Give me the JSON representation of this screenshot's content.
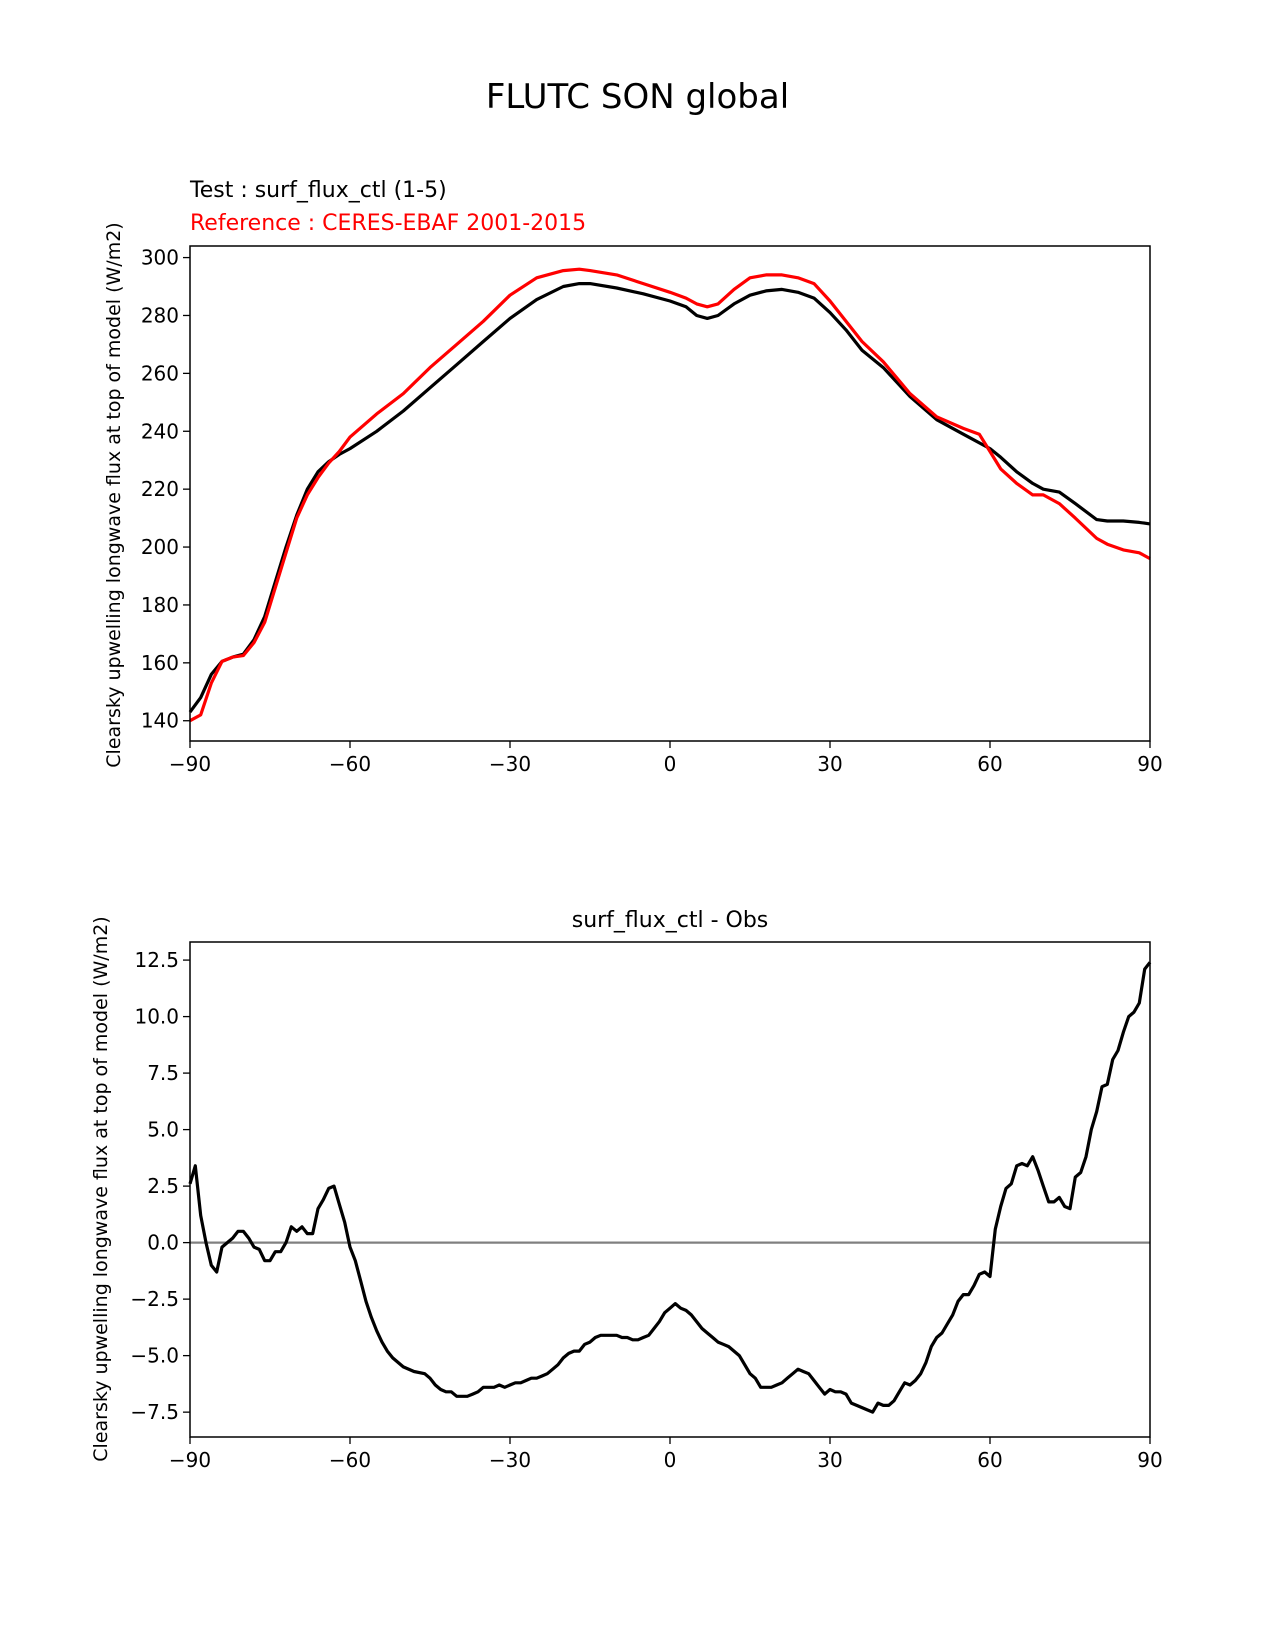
{
  "figure": {
    "title": "FLUTC SON global"
  },
  "colors": {
    "test": "#000000",
    "reference": "#ff0000",
    "zero_line": "#808080"
  },
  "chart_data": [
    {
      "type": "line",
      "title": "",
      "annotations": {
        "test": "Test : surf_flux_ctl (1-5)",
        "reference": "Reference : CERES-EBAF 2001-2015"
      },
      "xlabel": "",
      "ylabel": "Clearsky upwelling longwave flux at top of model (W/m2)",
      "xlim": [
        -90,
        90
      ],
      "ylim": [
        133,
        304
      ],
      "xticks": [
        -90,
        -60,
        -30,
        0,
        30,
        60,
        90
      ],
      "xtick_labels": [
        "−90",
        "−60",
        "−30",
        "0",
        "30",
        "60",
        "90"
      ],
      "yticks": [
        140,
        160,
        180,
        200,
        220,
        240,
        260,
        280,
        300
      ],
      "ytick_labels": [
        "140",
        "160",
        "180",
        "200",
        "220",
        "240",
        "260",
        "280",
        "300"
      ],
      "grid": false,
      "series": [
        {
          "role": "test",
          "color": "#000000",
          "x": [
            -90,
            -88,
            -86,
            -84,
            -82,
            -80,
            -78,
            -76,
            -74,
            -72,
            -70,
            -68,
            -66,
            -64,
            -62,
            -60,
            -55,
            -50,
            -45,
            -40,
            -35,
            -30,
            -25,
            -20,
            -17,
            -15,
            -10,
            -5,
            0,
            3,
            5,
            7,
            9,
            12,
            15,
            18,
            21,
            24,
            27,
            30,
            33,
            36,
            40,
            45,
            50,
            55,
            60,
            62,
            65,
            68,
            70,
            73,
            76,
            80,
            82,
            85,
            88,
            90
          ],
          "y": [
            143,
            148,
            156,
            160.5,
            162,
            163,
            168,
            176,
            188,
            200,
            211,
            220,
            226,
            229.5,
            232,
            234,
            240,
            247,
            255,
            263,
            271,
            279,
            285.5,
            290,
            291,
            291,
            289.5,
            287.5,
            285,
            283,
            280,
            279,
            280,
            284,
            287,
            288.5,
            289,
            288,
            286,
            281,
            275,
            268,
            262,
            252,
            244,
            239,
            234,
            231,
            226,
            222,
            220,
            219,
            215,
            209.5,
            209,
            209,
            208.5,
            208
          ]
        },
        {
          "role": "reference",
          "color": "#ff0000",
          "x": [
            -90,
            -88,
            -86,
            -84,
            -82,
            -80,
            -78,
            -76,
            -74,
            -72,
            -70,
            -68,
            -66,
            -64,
            -62,
            -60,
            -55,
            -50,
            -45,
            -40,
            -35,
            -30,
            -25,
            -20,
            -17,
            -15,
            -10,
            -5,
            0,
            3,
            5,
            7,
            9,
            12,
            15,
            18,
            21,
            24,
            27,
            30,
            33,
            36,
            40,
            45,
            50,
            55,
            58,
            60,
            62,
            65,
            68,
            70,
            73,
            76,
            80,
            82,
            85,
            88,
            90
          ],
          "y": [
            140,
            142,
            153,
            160.5,
            162,
            162.5,
            167,
            174,
            186,
            198,
            210,
            218,
            224,
            229,
            233,
            238,
            246,
            253,
            262,
            270,
            278,
            287,
            293,
            295.5,
            296,
            295.5,
            294,
            291,
            288,
            286,
            284,
            283,
            284,
            289,
            293,
            294,
            294,
            293,
            291,
            285,
            278,
            271,
            264,
            253,
            245,
            241,
            239,
            233,
            227,
            222,
            218,
            218,
            215,
            210,
            203,
            201,
            199,
            198,
            196
          ]
        }
      ]
    },
    {
      "type": "line",
      "title": "surf_flux_ctl - Obs",
      "xlabel": "",
      "ylabel": "Clearsky upwelling longwave flux at top of model (W/m2)",
      "xlim": [
        -90,
        90
      ],
      "ylim": [
        -8.6,
        13.3
      ],
      "xticks": [
        -90,
        -60,
        -30,
        0,
        30,
        60,
        90
      ],
      "xtick_labels": [
        "−90",
        "−60",
        "−30",
        "0",
        "30",
        "60",
        "90"
      ],
      "yticks": [
        -7.5,
        -5.0,
        -2.5,
        0.0,
        2.5,
        5.0,
        7.5,
        10.0,
        12.5
      ],
      "ytick_labels": [
        "−7.5",
        "−5.0",
        "−2.5",
        "0.0",
        "2.5",
        "5.0",
        "7.5",
        "10.0",
        "12.5"
      ],
      "grid": false,
      "reference_line": {
        "y": 0,
        "color": "#808080"
      },
      "series": [
        {
          "role": "difference",
          "color": "#000000",
          "x": [
            -90,
            -89,
            -88,
            -87,
            -86,
            -85,
            -84,
            -83,
            -82,
            -81,
            -80,
            -79,
            -78,
            -77,
            -76,
            -75,
            -74,
            -73,
            -72,
            -71,
            -70,
            -69,
            -68,
            -67,
            -66,
            -65,
            -64,
            -63,
            -62,
            -61,
            -60,
            -59,
            -58,
            -57,
            -56,
            -55,
            -54,
            -53,
            -52,
            -50,
            -48,
            -46,
            -45,
            -44,
            -43,
            -42,
            -41,
            -40,
            -39,
            -38,
            -37,
            -36,
            -35,
            -34,
            -33,
            -32,
            -31,
            -30,
            -29,
            -28,
            -27,
            -26,
            -25,
            -24,
            -23,
            -22,
            -21,
            -20,
            -19,
            -18,
            -17,
            -16,
            -15,
            -14,
            -13,
            -12,
            -11,
            -10,
            -9,
            -8,
            -7,
            -6,
            -5,
            -4,
            -3,
            -2,
            -1,
            0,
            1,
            2,
            3,
            4,
            5,
            6,
            7,
            8,
            9,
            10,
            11,
            12,
            13,
            14,
            15,
            16,
            17,
            18,
            19,
            20,
            21,
            22,
            23,
            24,
            25,
            26,
            27,
            28,
            29,
            30,
            31,
            32,
            33,
            34,
            35,
            36,
            37,
            38,
            39,
            40,
            41,
            42,
            43,
            44,
            45,
            46,
            47,
            48,
            49,
            50,
            51,
            52,
            53,
            54,
            55,
            56,
            57,
            58,
            59,
            60,
            61,
            62,
            63,
            64,
            65,
            66,
            67,
            68,
            69,
            70,
            71,
            72,
            73,
            74,
            75,
            76,
            77,
            78,
            79,
            80,
            81,
            82,
            83,
            84,
            85,
            86,
            87,
            88,
            89,
            90
          ],
          "y": [
            2.6,
            3.4,
            1.2,
            0.0,
            -1.0,
            -1.3,
            -0.2,
            0.0,
            0.2,
            0.5,
            0.5,
            0.2,
            -0.2,
            -0.3,
            -0.8,
            -0.8,
            -0.4,
            -0.4,
            0.0,
            0.7,
            0.5,
            0.7,
            0.4,
            0.4,
            1.5,
            1.9,
            2.4,
            2.5,
            1.7,
            0.9,
            -0.2,
            -0.8,
            -1.7,
            -2.6,
            -3.3,
            -3.9,
            -4.4,
            -4.8,
            -5.1,
            -5.5,
            -5.7,
            -5.8,
            -6.0,
            -6.3,
            -6.5,
            -6.6,
            -6.6,
            -6.8,
            -6.8,
            -6.8,
            -6.7,
            -6.6,
            -6.4,
            -6.4,
            -6.4,
            -6.3,
            -6.4,
            -6.3,
            -6.2,
            -6.2,
            -6.1,
            -6.0,
            -6.0,
            -5.9,
            -5.8,
            -5.6,
            -5.4,
            -5.1,
            -4.9,
            -4.8,
            -4.8,
            -4.5,
            -4.4,
            -4.2,
            -4.1,
            -4.1,
            -4.1,
            -4.1,
            -4.2,
            -4.2,
            -4.3,
            -4.3,
            -4.2,
            -4.1,
            -3.8,
            -3.5,
            -3.1,
            -2.9,
            -2.7,
            -2.9,
            -3.0,
            -3.2,
            -3.5,
            -3.8,
            -4.0,
            -4.2,
            -4.4,
            -4.5,
            -4.6,
            -4.8,
            -5.0,
            -5.4,
            -5.8,
            -6.0,
            -6.4,
            -6.4,
            -6.4,
            -6.3,
            -6.2,
            -6.0,
            -5.8,
            -5.6,
            -5.7,
            -5.8,
            -6.1,
            -6.4,
            -6.7,
            -6.5,
            -6.6,
            -6.6,
            -6.7,
            -7.1,
            -7.2,
            -7.3,
            -7.4,
            -7.5,
            -7.1,
            -7.2,
            -7.2,
            -7.0,
            -6.6,
            -6.2,
            -6.3,
            -6.1,
            -5.8,
            -5.3,
            -4.6,
            -4.2,
            -4.0,
            -3.6,
            -3.2,
            -2.6,
            -2.3,
            -2.3,
            -1.9,
            -1.4,
            -1.3,
            -1.5,
            0.6,
            1.6,
            2.4,
            2.6,
            3.4,
            3.5,
            3.4,
            3.8,
            3.2,
            2.5,
            1.8,
            1.8,
            2.0,
            1.6,
            1.5,
            2.9,
            3.1,
            3.8,
            5.0,
            5.8,
            6.9,
            7.0,
            8.1,
            8.5,
            9.3,
            10.0,
            10.2,
            10.6,
            12.1,
            12.4
          ]
        }
      ]
    }
  ]
}
